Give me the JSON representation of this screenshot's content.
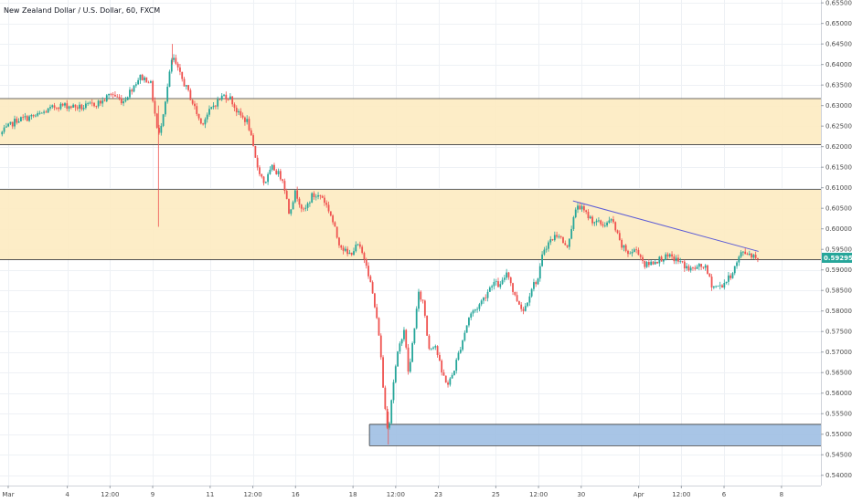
{
  "chart_data": {
    "type": "candlestick",
    "title": "New Zealand Dollar / U.S. Dollar, 60, FXCM",
    "ylim": [
      0.5375,
      0.6557
    ],
    "x_range": [
      0,
      1000
    ],
    "y_ticks": [
      "0.65500",
      "0.65000",
      "0.64500",
      "0.64000",
      "0.63500",
      "0.63000",
      "0.62500",
      "0.62000",
      "0.61500",
      "0.61000",
      "0.60500",
      "0.60000",
      "0.59500",
      "0.59000",
      "0.58500",
      "0.58000",
      "0.57500",
      "0.57000",
      "0.56500",
      "0.56000",
      "0.55500",
      "0.55000",
      "0.54500",
      "0.54000"
    ],
    "y_tick_values": [
      0.655,
      0.65,
      0.645,
      0.64,
      0.635,
      0.63,
      0.625,
      0.62,
      0.615,
      0.61,
      0.605,
      0.6,
      0.595,
      0.59,
      0.585,
      0.58,
      0.575,
      0.57,
      0.565,
      0.56,
      0.555,
      0.55,
      0.545,
      0.54
    ],
    "x_ticks": [
      {
        "label": "Mar",
        "pos": 10
      },
      {
        "label": "4",
        "pos": 82
      },
      {
        "label": "12:00",
        "pos": 134
      },
      {
        "label": "9",
        "pos": 186
      },
      {
        "label": "11",
        "pos": 256
      },
      {
        "label": "12:00",
        "pos": 308
      },
      {
        "label": "16",
        "pos": 360
      },
      {
        "label": "18",
        "pos": 430
      },
      {
        "label": "12:00",
        "pos": 482
      },
      {
        "label": "23",
        "pos": 534
      },
      {
        "label": "25",
        "pos": 604
      },
      {
        "label": "12:00",
        "pos": 656
      },
      {
        "label": "30",
        "pos": 708
      },
      {
        "label": "Apr",
        "pos": 778
      },
      {
        "label": "12:00",
        "pos": 830
      },
      {
        "label": "6",
        "pos": 882
      },
      {
        "label": "8",
        "pos": 952
      }
    ],
    "last_price": "0.59295",
    "last_value": 0.59295,
    "zones": [
      {
        "y_from": 0.6205,
        "y_to": 0.6317,
        "color": "#fdebc1",
        "border": "#3a3a3a"
      },
      {
        "y_from": 0.5925,
        "y_to": 0.6096,
        "color": "#fdebc1",
        "border": "#3a3a3a"
      },
      {
        "y_from": 0.5472,
        "y_to": 0.5524,
        "color": "#9fbfe3",
        "border": "#3a3a3a",
        "x_from": 450
      }
    ],
    "trendline": {
      "x1": 698,
      "y1": 0.6068,
      "x2": 924,
      "y2": 0.5945,
      "color": "#5b5bd6"
    },
    "colors": {
      "up": "#26a69a",
      "down": "#ef5350",
      "grid": "#eef1f5",
      "badge": "#26a69a"
    },
    "grid": true,
    "anchors": [
      [
        0,
        0.623
      ],
      [
        20,
        0.6265
      ],
      [
        45,
        0.6275
      ],
      [
        70,
        0.63
      ],
      [
        80,
        0.63
      ],
      [
        100,
        0.6295
      ],
      [
        125,
        0.631
      ],
      [
        135,
        0.633
      ],
      [
        150,
        0.631
      ],
      [
        160,
        0.634
      ],
      [
        170,
        0.637
      ],
      [
        183,
        0.636
      ],
      [
        193,
        0.622
      ],
      [
        202,
        0.632
      ],
      [
        210,
        0.642
      ],
      [
        218,
        0.638
      ],
      [
        230,
        0.633
      ],
      [
        245,
        0.6255
      ],
      [
        260,
        0.63
      ],
      [
        272,
        0.6325
      ],
      [
        280,
        0.632
      ],
      [
        290,
        0.628
      ],
      [
        302,
        0.626
      ],
      [
        312,
        0.616
      ],
      [
        322,
        0.611
      ],
      [
        332,
        0.615
      ],
      [
        345,
        0.612
      ],
      [
        352,
        0.604
      ],
      [
        360,
        0.609
      ],
      [
        370,
        0.604
      ],
      [
        380,
        0.608
      ],
      [
        392,
        0.608
      ],
      [
        402,
        0.604
      ],
      [
        412,
        0.597
      ],
      [
        424,
        0.5935
      ],
      [
        436,
        0.596
      ],
      [
        446,
        0.592
      ],
      [
        454,
        0.584
      ],
      [
        462,
        0.574
      ],
      [
        468,
        0.558
      ],
      [
        473,
        0.5505
      ],
      [
        478,
        0.561
      ],
      [
        484,
        0.569
      ],
      [
        492,
        0.576
      ],
      [
        498,
        0.564
      ],
      [
        504,
        0.575
      ],
      [
        510,
        0.584
      ],
      [
        516,
        0.582
      ],
      [
        522,
        0.571
      ],
      [
        530,
        0.572
      ],
      [
        538,
        0.565
      ],
      [
        546,
        0.562
      ],
      [
        552,
        0.565
      ],
      [
        562,
        0.572
      ],
      [
        572,
        0.579
      ],
      [
        582,
        0.581
      ],
      [
        592,
        0.584
      ],
      [
        600,
        0.587
      ],
      [
        610,
        0.586
      ],
      [
        618,
        0.59
      ],
      [
        626,
        0.584
      ],
      [
        638,
        0.58
      ],
      [
        648,
        0.586
      ],
      [
        656,
        0.588
      ],
      [
        662,
        0.595
      ],
      [
        670,
        0.597
      ],
      [
        680,
        0.599
      ],
      [
        690,
        0.595
      ],
      [
        698,
        0.602
      ],
      [
        704,
        0.606
      ],
      [
        712,
        0.604
      ],
      [
        722,
        0.602
      ],
      [
        734,
        0.601
      ],
      [
        746,
        0.602
      ],
      [
        756,
        0.596
      ],
      [
        766,
        0.594
      ],
      [
        776,
        0.595
      ],
      [
        786,
        0.591
      ],
      [
        796,
        0.592
      ],
      [
        808,
        0.593
      ],
      [
        818,
        0.593
      ],
      [
        828,
        0.592
      ],
      [
        840,
        0.59
      ],
      [
        848,
        0.5905
      ],
      [
        858,
        0.591
      ],
      [
        868,
        0.586
      ],
      [
        878,
        0.586
      ],
      [
        888,
        0.588
      ],
      [
        896,
        0.591
      ],
      [
        904,
        0.5945
      ],
      [
        912,
        0.594
      ],
      [
        924,
        0.593
      ]
    ]
  }
}
